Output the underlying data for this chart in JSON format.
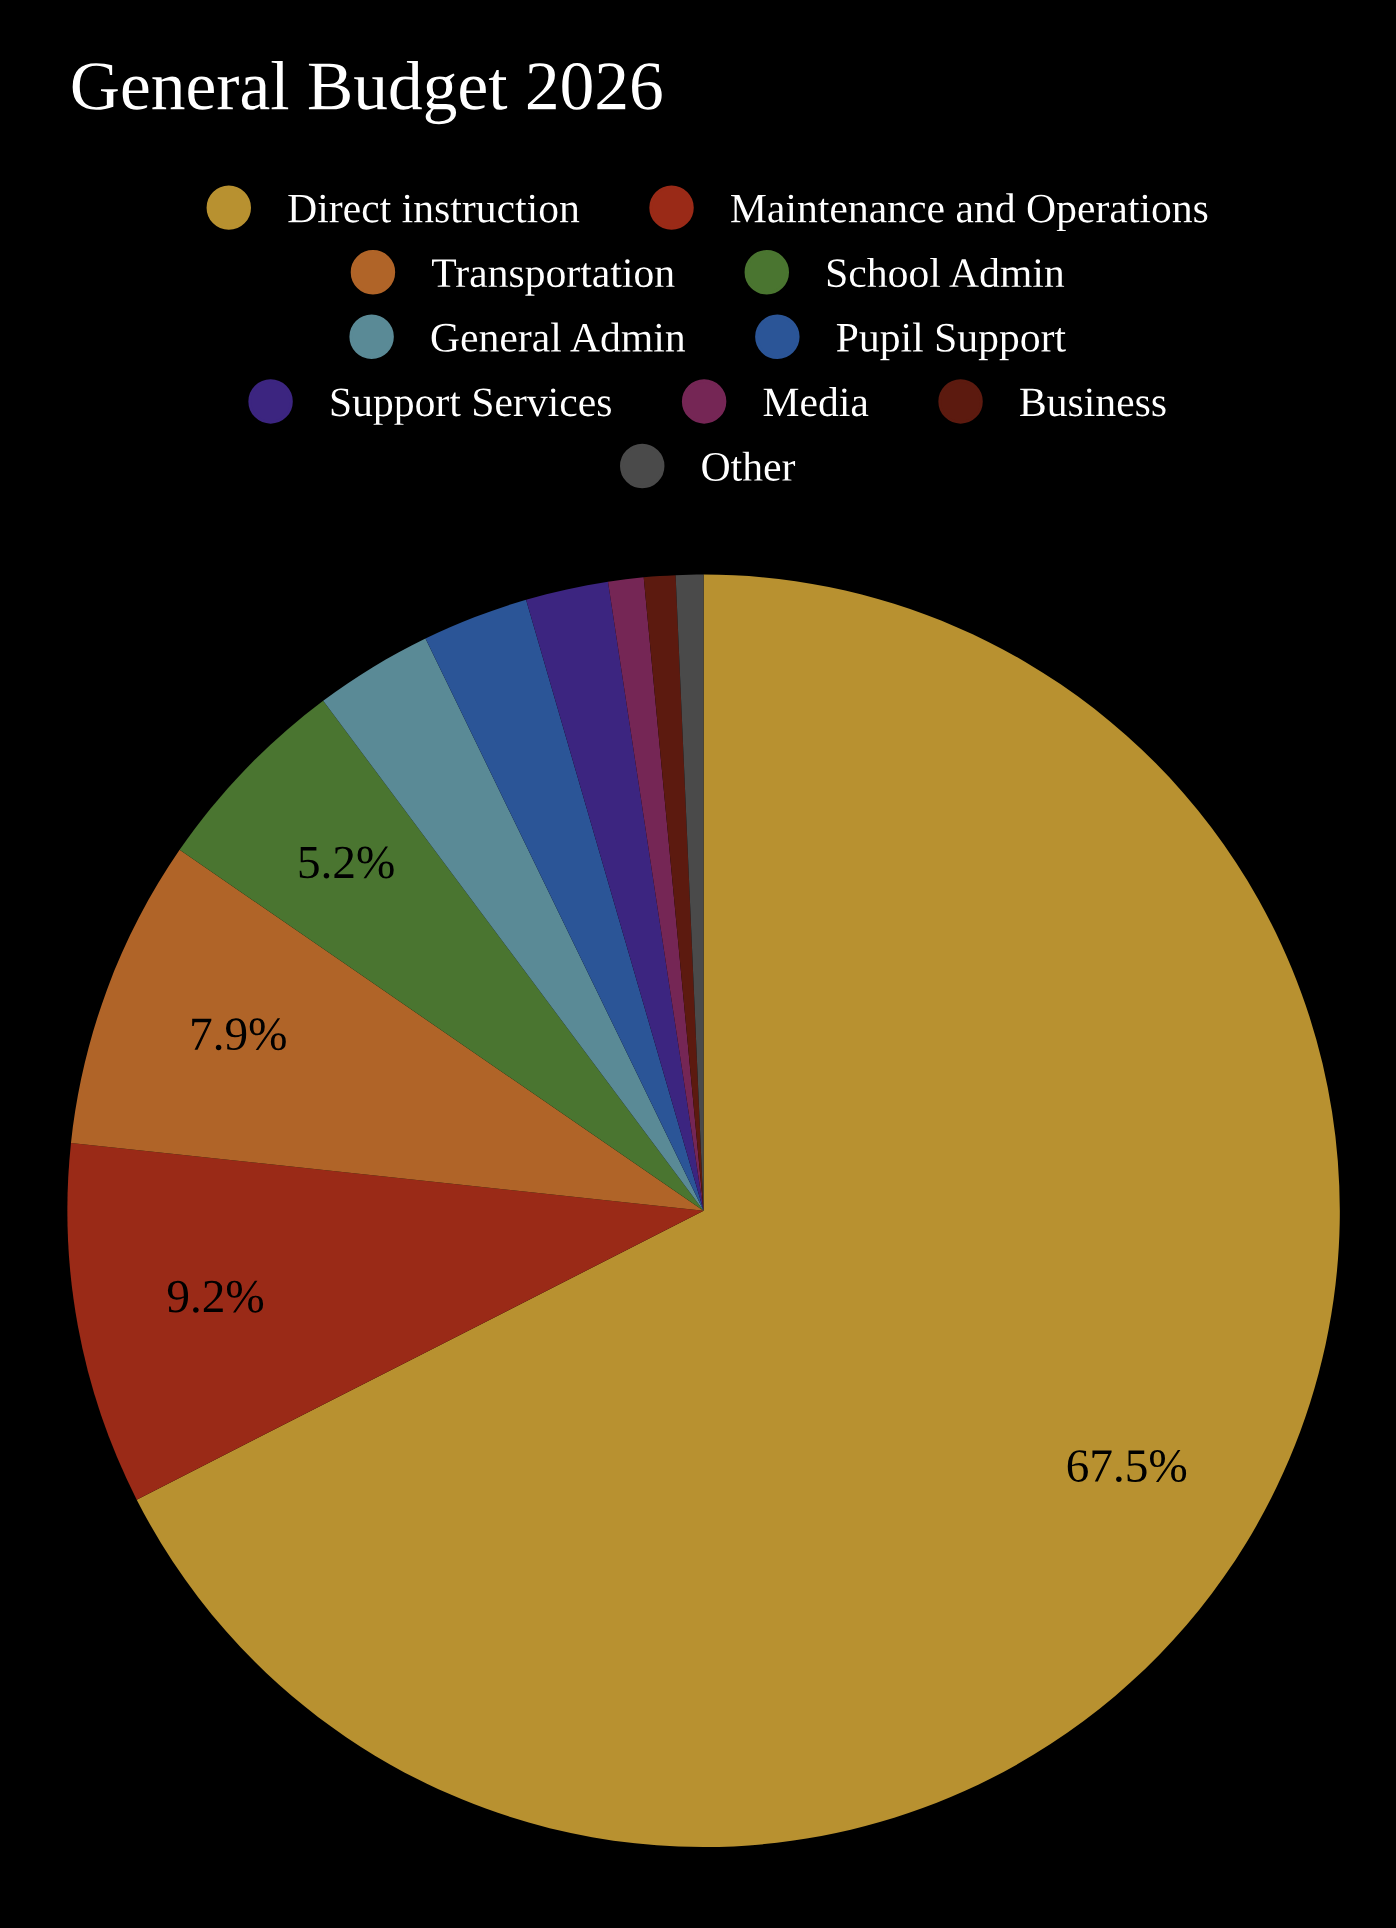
{
  "chart_data": {
    "type": "pie",
    "title": "General Budget 2026",
    "categories": [
      "Direct instruction",
      "Maintenance and Operations",
      "Transportation",
      "School Admin",
      "General Admin",
      "Pupil Support",
      "Support Services",
      "Media",
      "Business",
      "Other"
    ],
    "values": [
      67.5,
      9.2,
      7.9,
      5.2,
      3.0,
      2.7,
      2.1,
      0.9,
      0.8,
      0.7
    ],
    "value_labels": [
      "67.5%",
      "9.2%",
      "7.9%",
      "5.2%",
      null,
      null,
      null,
      null,
      null,
      null
    ],
    "colors": [
      "#b89130",
      "#9a2a17",
      "#b06428",
      "#4a7530",
      "#5a8a96",
      "#2b5597",
      "#3c2580",
      "#752655",
      "#5c1a0f",
      "#4a4a4a"
    ],
    "legend": "top"
  }
}
